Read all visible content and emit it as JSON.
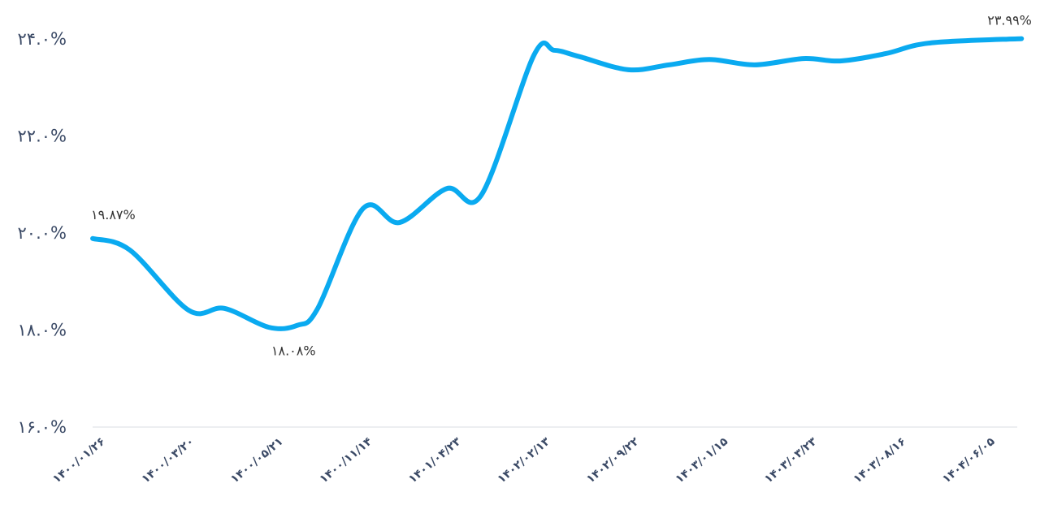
{
  "chart_data": {
    "type": "line",
    "title": "",
    "xlabel": "",
    "ylabel": "",
    "ylim": [
      16,
      24
    ],
    "grid": false,
    "y_ticks": [
      {
        "value": 24,
        "label": "۲۴.۰%"
      },
      {
        "value": 22,
        "label": "۲۲.۰%"
      },
      {
        "value": 20,
        "label": "۲۰.۰%"
      },
      {
        "value": 18,
        "label": "۱۸.۰%"
      },
      {
        "value": 16,
        "label": "۱۶.۰%"
      }
    ],
    "categories": [
      "۱۴۰۰/۰۱/۲۶",
      "۱۴۰۰/۰۳/۲۰",
      "۱۴۰۰/۰۵/۲۱",
      "۱۴۰۰/۱۱/۱۴",
      "۱۴۰۱/۰۴/۲۳",
      "۱۴۰۲/۰۲/۱۳",
      "۱۴۰۲/۰۹/۲۲",
      "۱۴۰۳/۰۱/۱۵",
      "۱۴۰۳/۰۳/۲۳",
      "۱۴۰۳/۰۸/۱۶",
      "۱۴۰۴/۰۶/۰۵"
    ],
    "series": [
      {
        "name": "value",
        "color": "#0aaaf0",
        "points": [
          [
            -0.1,
            19.87
          ],
          [
            0.32,
            19.63
          ],
          [
            0.98,
            18.39
          ],
          [
            1.38,
            18.43
          ],
          [
            1.88,
            18.04
          ],
          [
            2.2,
            18.08
          ],
          [
            2.43,
            18.43
          ],
          [
            2.94,
            20.49
          ],
          [
            3.35,
            20.2
          ],
          [
            3.88,
            20.9
          ],
          [
            4.27,
            20.77
          ],
          [
            4.86,
            23.65
          ],
          [
            5.09,
            23.75
          ],
          [
            5.37,
            23.62
          ],
          [
            5.92,
            23.35
          ],
          [
            6.38,
            23.45
          ],
          [
            6.83,
            23.56
          ],
          [
            7.34,
            23.45
          ],
          [
            7.89,
            23.58
          ],
          [
            8.3,
            23.53
          ],
          [
            8.81,
            23.68
          ],
          [
            9.31,
            23.9
          ],
          [
            10.34,
            23.99
          ]
        ]
      }
    ],
    "annotations": [
      {
        "label": "۱۹.۸۷%",
        "x": -0.1,
        "value": 19.87
      },
      {
        "label": "۱۸.۰۸%",
        "x": 2.2,
        "value": 18.08
      },
      {
        "label": "۲۳.۹۹%",
        "x": 10.34,
        "value": 23.99
      }
    ]
  }
}
